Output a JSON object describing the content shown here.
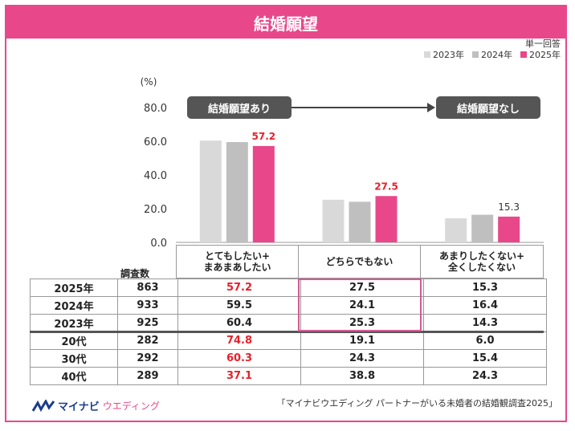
{
  "title": "結婚願望",
  "note": "単一回答",
  "legend": [
    {
      "name": "2023年",
      "color": "#d9d9d9"
    },
    {
      "name": "2024年",
      "color": "#bfbfbf"
    },
    {
      "name": "2025年",
      "color": "#e8488a"
    }
  ],
  "callouts": {
    "left": "結婚願望あり",
    "right": "結婚願望なし"
  },
  "chart_data": {
    "type": "bar",
    "unit_label": "(%)",
    "categories": [
      "とてもしたい+\nまあまあしたい",
      "どちらでもない",
      "あまりしたくない+\n全くしたくない"
    ],
    "series": [
      {
        "name": "2023年",
        "values": [
          60.4,
          25.3,
          14.3
        ],
        "color": "#d9d9d9"
      },
      {
        "name": "2024年",
        "values": [
          59.5,
          24.1,
          16.4
        ],
        "color": "#bfbfbf"
      },
      {
        "name": "2025年",
        "values": [
          57.2,
          27.5,
          15.3
        ],
        "color": "#e8488a"
      }
    ],
    "data_labels": [
      {
        "text": "57.2",
        "category": 0,
        "series": 2,
        "color": "#e8202a"
      },
      {
        "text": "27.5",
        "category": 1,
        "series": 2,
        "color": "#e8202a"
      },
      {
        "text": "15.3",
        "category": 2,
        "series": 2,
        "color": "#333333"
      }
    ],
    "yticks": [
      "0.0",
      "20.0",
      "40.0",
      "60.0",
      "80.0"
    ],
    "ylim": [
      0,
      80
    ],
    "grid": false,
    "legend_position": "top-right"
  },
  "table": {
    "n_header": "調査数",
    "headers": [
      "とてもしたい+\nまあまあしたい",
      "どちらでもない",
      "あまりしたくない+\n全くしたくない"
    ],
    "rows": [
      {
        "label": "2025年",
        "n": "863",
        "v": [
          "57.2",
          "27.5",
          "15.3"
        ],
        "hl": [
          true,
          false,
          false
        ]
      },
      {
        "label": "2024年",
        "n": "933",
        "v": [
          "59.5",
          "24.1",
          "16.4"
        ],
        "hl": [
          false,
          false,
          false
        ]
      },
      {
        "label": "2023年",
        "n": "925",
        "v": [
          "60.4",
          "25.3",
          "14.3"
        ],
        "hl": [
          false,
          false,
          false
        ]
      },
      {
        "label": "20代",
        "n": "282",
        "v": [
          "74.8",
          "19.1",
          "6.0"
        ],
        "hl": [
          true,
          false,
          false
        ]
      },
      {
        "label": "30代",
        "n": "292",
        "v": [
          "60.3",
          "24.3",
          "15.4"
        ],
        "hl": [
          true,
          false,
          false
        ]
      },
      {
        "label": "40代",
        "n": "289",
        "v": [
          "37.1",
          "38.8",
          "24.3"
        ],
        "hl": [
          true,
          false,
          false
        ]
      }
    ]
  },
  "footer": {
    "logo_main": "マイナビ",
    "logo_sub": "ウエディング",
    "source": "「マイナビウエディング パートナーがいる未婚者の結婚観調査2025」"
  }
}
